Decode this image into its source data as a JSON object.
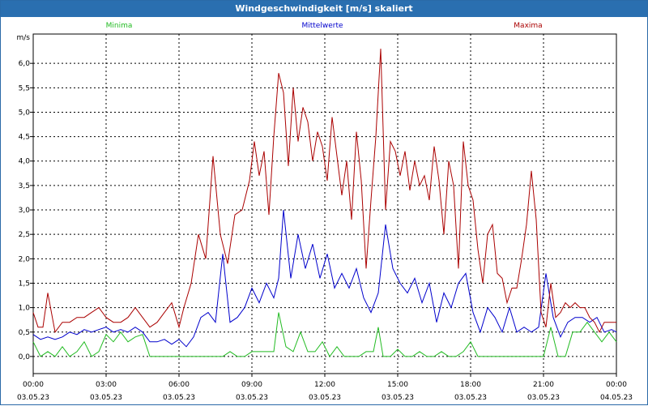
{
  "window": {
    "title": "Windgeschwindigkeit [m/s] skaliert"
  },
  "colors": {
    "minima": "#22bb22",
    "mittel": "#0000cc",
    "maxima": "#aa0000",
    "grid": "#000000"
  },
  "chart_data": {
    "type": "line",
    "title": "Windgeschwindigkeit [m/s] skaliert",
    "ylabel": "m/s",
    "ylim": [
      -0.35,
      6.6
    ],
    "yticks": [
      "0,0",
      "0,5",
      "1,0",
      "1,5",
      "2,0",
      "2,5",
      "3,0",
      "3,5",
      "4,0",
      "4,5",
      "5,0",
      "5,5",
      "6,0"
    ],
    "ytick_values": [
      0,
      0.5,
      1,
      1.5,
      2,
      2.5,
      3,
      3.5,
      4,
      4.5,
      5,
      5.5,
      6
    ],
    "x_hours": [
      0,
      24
    ],
    "xticks": [
      {
        "time": "00:00",
        "date": "03.05.23"
      },
      {
        "time": "03:00",
        "date": "03.05.23"
      },
      {
        "time": "06:00",
        "date": "03.05.23"
      },
      {
        "time": "09:00",
        "date": "03.05.23"
      },
      {
        "time": "12:00",
        "date": "03.05.23"
      },
      {
        "time": "15:00",
        "date": "03.05.23"
      },
      {
        "time": "18:00",
        "date": "03.05.23"
      },
      {
        "time": "21:00",
        "date": "03.05.23"
      },
      {
        "time": "00:00",
        "date": "04.05.23"
      }
    ],
    "legend": [
      "Minima",
      "Mittelwerte",
      "Maxima"
    ],
    "series": [
      {
        "name": "Minima",
        "color": "#22bb22",
        "x": [
          0,
          0.3,
          0.6,
          0.9,
          1.2,
          1.5,
          1.8,
          2.1,
          2.4,
          2.7,
          3.0,
          3.3,
          3.6,
          3.9,
          4.2,
          4.5,
          4.8,
          5.1,
          5.5,
          6.0,
          6.5,
          7.0,
          7.5,
          7.8,
          8.1,
          8.4,
          8.7,
          9.0,
          9.3,
          9.6,
          9.9,
          10.1,
          10.4,
          10.7,
          11.0,
          11.3,
          11.6,
          11.9,
          12.2,
          12.5,
          12.8,
          13.1,
          13.4,
          13.7,
          14.0,
          14.2,
          14.4,
          14.7,
          15.0,
          15.3,
          15.6,
          15.9,
          16.2,
          16.5,
          16.8,
          17.1,
          17.4,
          17.7,
          18.0,
          18.3,
          18.6,
          18.9,
          19.2,
          19.5,
          19.8,
          20.1,
          20.4,
          20.7,
          21.0,
          21.3,
          21.6,
          21.9,
          22.2,
          22.5,
          22.8,
          23.1,
          23.4,
          23.7,
          24.0
        ],
        "y": [
          0.3,
          0.0,
          0.1,
          0.0,
          0.2,
          0.0,
          0.1,
          0.3,
          0.0,
          0.1,
          0.45,
          0.3,
          0.5,
          0.3,
          0.4,
          0.45,
          0.0,
          0.0,
          0.0,
          0.0,
          0.0,
          0.0,
          0.0,
          0.0,
          0.1,
          0.0,
          0.0,
          0.1,
          0.1,
          0.1,
          0.1,
          0.9,
          0.2,
          0.1,
          0.5,
          0.1,
          0.1,
          0.3,
          0.0,
          0.2,
          0.0,
          0.0,
          0.0,
          0.1,
          0.1,
          0.6,
          0.0,
          0.0,
          0.15,
          0.0,
          0.0,
          0.1,
          0.0,
          0.0,
          0.1,
          0.0,
          0.0,
          0.1,
          0.3,
          0.0,
          0.0,
          0.0,
          0.0,
          0.0,
          0.0,
          0.0,
          0.0,
          0.0,
          0.0,
          0.6,
          0.0,
          0.0,
          0.5,
          0.5,
          0.7,
          0.5,
          0.3,
          0.5,
          0.3
        ]
      },
      {
        "name": "Mittelwerte",
        "color": "#0000cc",
        "x": [
          0,
          0.3,
          0.6,
          0.9,
          1.2,
          1.5,
          1.8,
          2.1,
          2.4,
          2.7,
          3.0,
          3.3,
          3.6,
          3.9,
          4.2,
          4.5,
          4.8,
          5.1,
          5.4,
          5.7,
          6.0,
          6.3,
          6.6,
          6.9,
          7.2,
          7.5,
          7.8,
          8.1,
          8.4,
          8.7,
          9.0,
          9.3,
          9.6,
          9.9,
          10.1,
          10.3,
          10.6,
          10.9,
          11.2,
          11.5,
          11.8,
          12.1,
          12.4,
          12.7,
          13.0,
          13.3,
          13.6,
          13.9,
          14.2,
          14.5,
          14.8,
          15.1,
          15.4,
          15.7,
          16.0,
          16.3,
          16.6,
          16.9,
          17.2,
          17.5,
          17.8,
          18.1,
          18.4,
          18.7,
          19.0,
          19.3,
          19.6,
          19.9,
          20.2,
          20.5,
          20.8,
          21.1,
          21.4,
          21.7,
          22.0,
          22.3,
          22.6,
          22.9,
          23.2,
          23.5,
          23.8,
          24.0
        ],
        "y": [
          0.45,
          0.35,
          0.4,
          0.35,
          0.4,
          0.5,
          0.45,
          0.55,
          0.5,
          0.55,
          0.6,
          0.5,
          0.55,
          0.5,
          0.6,
          0.5,
          0.3,
          0.3,
          0.35,
          0.25,
          0.35,
          0.2,
          0.4,
          0.8,
          0.9,
          0.7,
          2.1,
          0.7,
          0.8,
          1.0,
          1.4,
          1.1,
          1.5,
          1.2,
          1.6,
          3.0,
          1.6,
          2.5,
          1.8,
          2.3,
          1.6,
          2.1,
          1.4,
          1.7,
          1.4,
          1.8,
          1.2,
          0.9,
          1.3,
          2.7,
          1.8,
          1.5,
          1.3,
          1.6,
          1.1,
          1.5,
          0.7,
          1.3,
          1.0,
          1.5,
          1.7,
          0.9,
          0.5,
          1.0,
          0.8,
          0.5,
          1.0,
          0.5,
          0.6,
          0.5,
          0.6,
          1.7,
          0.8,
          0.4,
          0.7,
          0.8,
          0.8,
          0.7,
          0.8,
          0.5,
          0.55,
          0.5
        ]
      },
      {
        "name": "Maxima",
        "color": "#aa0000",
        "x": [
          0,
          0.2,
          0.4,
          0.6,
          0.9,
          1.2,
          1.5,
          1.8,
          2.1,
          2.4,
          2.7,
          3.0,
          3.3,
          3.6,
          3.9,
          4.2,
          4.5,
          4.8,
          5.1,
          5.4,
          5.7,
          6.0,
          6.2,
          6.5,
          6.8,
          7.1,
          7.4,
          7.7,
          8.0,
          8.3,
          8.6,
          8.9,
          9.1,
          9.3,
          9.5,
          9.7,
          9.9,
          10.1,
          10.3,
          10.5,
          10.7,
          10.9,
          11.1,
          11.3,
          11.5,
          11.7,
          11.9,
          12.1,
          12.3,
          12.5,
          12.7,
          12.9,
          13.1,
          13.3,
          13.5,
          13.7,
          13.9,
          14.1,
          14.3,
          14.5,
          14.7,
          14.9,
          15.1,
          15.3,
          15.5,
          15.7,
          15.9,
          16.1,
          16.3,
          16.5,
          16.7,
          16.9,
          17.1,
          17.3,
          17.5,
          17.7,
          17.9,
          18.1,
          18.3,
          18.5,
          18.7,
          18.9,
          19.1,
          19.3,
          19.5,
          19.7,
          19.9,
          20.1,
          20.3,
          20.5,
          20.7,
          20.9,
          21.1,
          21.3,
          21.5,
          21.7,
          21.9,
          22.1,
          22.3,
          22.5,
          22.7,
          22.9,
          23.1,
          23.3,
          23.5,
          23.7,
          24.0
        ],
        "y": [
          0.9,
          0.6,
          0.6,
          1.3,
          0.5,
          0.7,
          0.7,
          0.8,
          0.8,
          0.9,
          1.0,
          0.8,
          0.7,
          0.7,
          0.8,
          1.0,
          0.8,
          0.6,
          0.7,
          0.9,
          1.1,
          0.6,
          1.0,
          1.5,
          2.5,
          2.0,
          4.1,
          2.5,
          1.9,
          2.9,
          3.0,
          3.6,
          4.4,
          3.7,
          4.2,
          2.9,
          4.5,
          5.8,
          5.4,
          3.9,
          5.5,
          4.4,
          5.1,
          4.8,
          4.0,
          4.6,
          4.3,
          3.6,
          4.9,
          4.1,
          3.3,
          4.0,
          2.8,
          4.6,
          3.6,
          1.8,
          3.2,
          4.5,
          6.3,
          3.0,
          4.4,
          4.2,
          3.7,
          4.2,
          3.4,
          4.0,
          3.5,
          3.7,
          3.2,
          4.3,
          3.6,
          2.5,
          4.0,
          3.5,
          1.8,
          4.4,
          3.5,
          3.2,
          2.2,
          1.5,
          2.5,
          2.7,
          1.7,
          1.6,
          1.1,
          1.4,
          1.4,
          2.0,
          2.7,
          3.8,
          2.8,
          0.9,
          0.6,
          1.5,
          0.8,
          0.9,
          1.1,
          1.0,
          1.1,
          1.0,
          1.0,
          0.8,
          0.7,
          0.5,
          0.7,
          0.7,
          0.7
        ]
      }
    ]
  }
}
